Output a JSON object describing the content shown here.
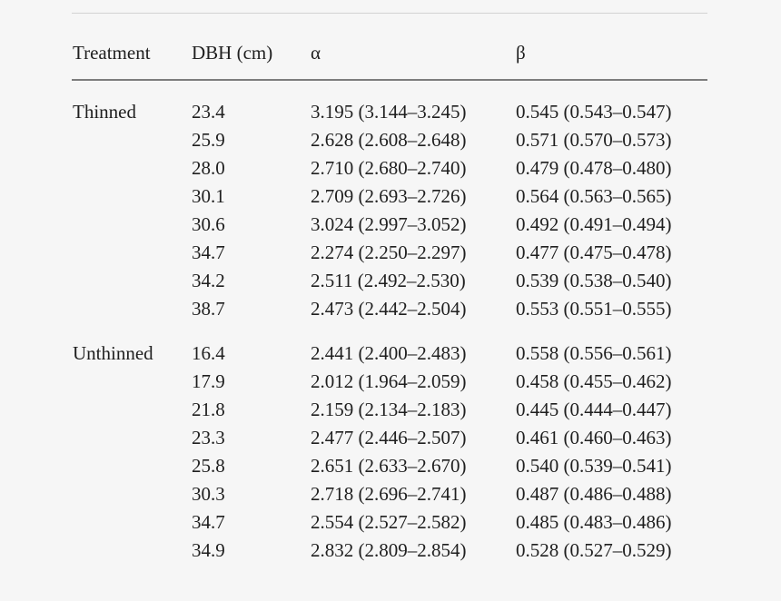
{
  "page": {
    "background": "#f6f6f6",
    "text_color": "#1f1f1f",
    "header_rule_color": "#7d7d7d",
    "top_rule_color": "#d2d2d2"
  },
  "table": {
    "columns": {
      "treatment": "Treatment",
      "dbh": "DBH (cm)",
      "alpha": "α",
      "beta": "β"
    },
    "sections": [
      {
        "treatment": "Thinned",
        "rows": [
          {
            "dbh": "23.4",
            "alpha": "3.195 (3.144–3.245)",
            "beta": "0.545 (0.543–0.547)"
          },
          {
            "dbh": "25.9",
            "alpha": "2.628 (2.608–2.648)",
            "beta": "0.571 (0.570–0.573)"
          },
          {
            "dbh": "28.0",
            "alpha": "2.710 (2.680–2.740)",
            "beta": "0.479 (0.478–0.480)"
          },
          {
            "dbh": "30.1",
            "alpha": "2.709 (2.693–2.726)",
            "beta": "0.564 (0.563–0.565)"
          },
          {
            "dbh": "30.6",
            "alpha": "3.024 (2.997–3.052)",
            "beta": "0.492 (0.491–0.494)"
          },
          {
            "dbh": "34.7",
            "alpha": "2.274 (2.250–2.297)",
            "beta": "0.477 (0.475–0.478)"
          },
          {
            "dbh": "34.2",
            "alpha": "2.511 (2.492–2.530)",
            "beta": "0.539 (0.538–0.540)"
          },
          {
            "dbh": "38.7",
            "alpha": "2.473 (2.442–2.504)",
            "beta": "0.553 (0.551–0.555)"
          }
        ]
      },
      {
        "treatment": "Unthinned",
        "rows": [
          {
            "dbh": "16.4",
            "alpha": "2.441 (2.400–2.483)",
            "beta": "0.558 (0.556–0.561)"
          },
          {
            "dbh": "17.9",
            "alpha": "2.012 (1.964–2.059)",
            "beta": "0.458 (0.455–0.462)"
          },
          {
            "dbh": "21.8",
            "alpha": "2.159 (2.134–2.183)",
            "beta": "0.445 (0.444–0.447)"
          },
          {
            "dbh": "23.3",
            "alpha": "2.477 (2.446–2.507)",
            "beta": "0.461 (0.460–0.463)"
          },
          {
            "dbh": "25.8",
            "alpha": "2.651 (2.633–2.670)",
            "beta": "0.540 (0.539–0.541)"
          },
          {
            "dbh": "30.3",
            "alpha": "2.718 (2.696–2.741)",
            "beta": "0.487 (0.486–0.488)"
          },
          {
            "dbh": "34.7",
            "alpha": "2.554 (2.527–2.582)",
            "beta": "0.485 (0.483–0.486)"
          },
          {
            "dbh": "34.9",
            "alpha": "2.832 (2.809–2.854)",
            "beta": "0.528 (0.527–0.529)"
          }
        ]
      }
    ]
  }
}
